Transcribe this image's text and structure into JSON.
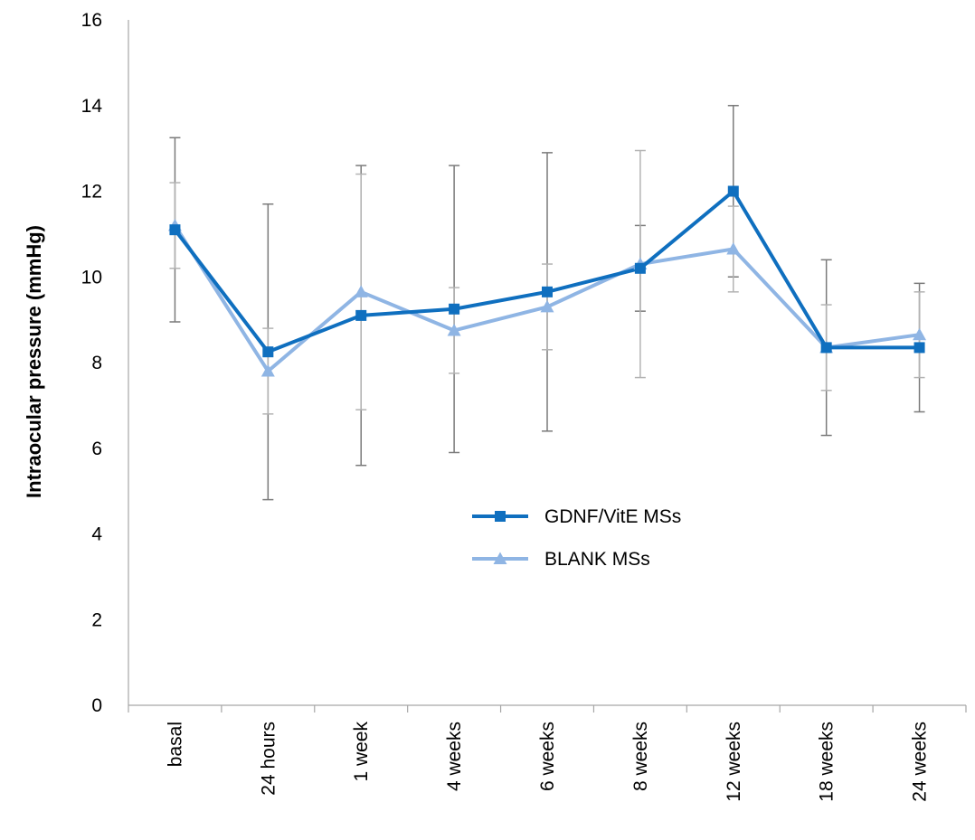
{
  "chart_data": {
    "type": "line",
    "title": "",
    "xlabel": "",
    "ylabel": "Intraocular pressure (mmHg)",
    "ylim": [
      0,
      16
    ],
    "yticks": [
      0,
      2,
      4,
      6,
      8,
      10,
      12,
      14,
      16
    ],
    "grid": false,
    "legend_position": "center",
    "categories": [
      "basal",
      "24 hours",
      "1 week",
      "4 weeks",
      "6 weeks",
      "8 weeks",
      "12 weeks",
      "18 weeks",
      "24 weeks"
    ],
    "series": [
      {
        "name": "GDNF/VitE MSs",
        "color": "#0f6fbf",
        "marker": "square",
        "values": [
          11.1,
          8.25,
          9.1,
          9.25,
          9.65,
          10.2,
          12.0,
          8.35,
          8.35
        ],
        "error": [
          2.15,
          3.45,
          3.5,
          3.35,
          3.25,
          1.0,
          2.0,
          2.05,
          1.5
        ]
      },
      {
        "name": "BLANK MSs",
        "color": "#8fb5e4",
        "marker": "triangle",
        "values": [
          11.2,
          7.8,
          9.65,
          8.75,
          9.3,
          10.3,
          10.65,
          8.35,
          8.65
        ],
        "error": [
          1.0,
          1.0,
          2.75,
          1.0,
          1.0,
          2.65,
          1.0,
          1.0,
          1.0
        ]
      }
    ]
  }
}
